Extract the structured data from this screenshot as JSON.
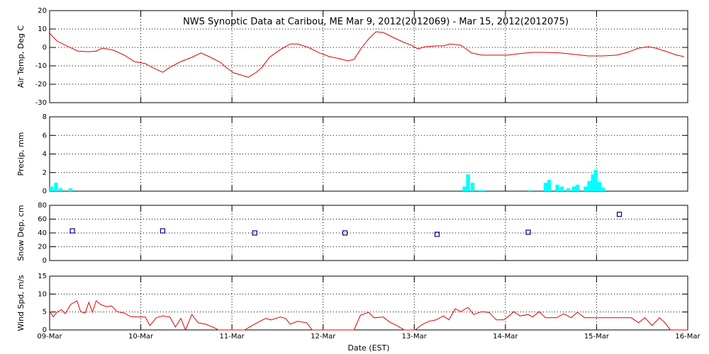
{
  "chart_data": [
    {
      "type": "line",
      "title": "NWS Synoptic Data at Caribou, ME   Mar  9, 2012(2012069) - Mar 15, 2012(2012075)",
      "y_label": "Air Temp, Deg C",
      "color": "#e00000",
      "grid": true,
      "xlim": [
        0,
        7
      ],
      "xticks": [
        0,
        1,
        2,
        3,
        4,
        5,
        6,
        7
      ],
      "ylim": [
        -30,
        20
      ],
      "yticks": [
        -30,
        -20,
        -10,
        0,
        10,
        20
      ],
      "x": [
        0,
        0.08,
        0.19,
        0.31,
        0.43,
        0.51,
        0.58,
        0.7,
        0.82,
        0.93,
        1.05,
        1.13,
        1.24,
        1.32,
        1.44,
        1.56,
        1.66,
        1.75,
        1.87,
        1.94,
        2.02,
        2.1,
        2.18,
        2.26,
        2.33,
        2.41,
        2.53,
        2.64,
        2.72,
        2.84,
        2.96,
        3.07,
        3.19,
        3.27,
        3.34,
        3.42,
        3.5,
        3.58,
        3.66,
        3.77,
        3.89,
        3.97,
        4.04,
        4.12,
        4.24,
        4.32,
        4.39,
        4.51,
        4.63,
        4.74,
        4.9,
        5.02,
        5.13,
        5.29,
        5.44,
        5.6,
        5.76,
        5.91,
        6.07,
        6.22,
        6.34,
        6.46,
        6.57,
        6.65,
        6.77,
        6.88,
        6.96
      ],
      "values": [
        7.7,
        3.5,
        0.8,
        -2,
        -2.3,
        -2,
        -0.4,
        -1.5,
        -4.2,
        -7.7,
        -8.8,
        -11,
        -13.5,
        -10.8,
        -7.7,
        -5.4,
        -3,
        -5,
        -8,
        -11,
        -13.8,
        -15,
        -16.2,
        -13.8,
        -10.8,
        -5.4,
        -1.2,
        1.9,
        1.9,
        0,
        -3,
        -5,
        -6.2,
        -7.3,
        -6.5,
        -0.4,
        4.6,
        8.5,
        8.1,
        5.4,
        2.7,
        1.2,
        -0.8,
        0.4,
        0.8,
        0.8,
        1.9,
        1.2,
        -3,
        -4.2,
        -4.2,
        -4.2,
        -3.5,
        -2.7,
        -2.7,
        -3,
        -3.8,
        -4.6,
        -4.6,
        -4.2,
        -2.7,
        -0.4,
        0.4,
        -0.4,
        -2.3,
        -4.2,
        -5
      ]
    },
    {
      "type": "bar",
      "y_label": "Precip, mm",
      "color": "#00ffff",
      "grid": true,
      "xlim": [
        0,
        7
      ],
      "xticks": [
        0,
        1,
        2,
        3,
        4,
        5,
        6,
        7
      ],
      "ylim": [
        0,
        8
      ],
      "yticks": [
        0,
        2,
        4,
        6,
        8
      ],
      "x": [
        0.02,
        0.07,
        0.12,
        0.23,
        4.55,
        4.59,
        4.64,
        4.72,
        4.76,
        5.27,
        5.44,
        5.48,
        5.57,
        5.62,
        5.69,
        5.75,
        5.79,
        5.88,
        5.92,
        5.96,
        5.99,
        6.03,
        6.07
      ],
      "values": [
        0.5,
        0.9,
        0.3,
        0.3,
        0.5,
        1.8,
        0.9,
        0.1,
        0.1,
        0.1,
        0.9,
        1.2,
        0.7,
        0.5,
        0.3,
        0.5,
        0.7,
        0.5,
        1.1,
        1.8,
        2.3,
        1.0,
        0.4
      ]
    },
    {
      "type": "scatter",
      "y_label": "Snow Dep, cm",
      "color": "#000080",
      "grid": true,
      "xlim": [
        0,
        7
      ],
      "xticks": [
        0,
        1,
        2,
        3,
        4,
        5,
        6,
        7
      ],
      "ylim": [
        0,
        80
      ],
      "yticks": [
        0,
        20,
        40,
        60,
        80
      ],
      "x": [
        0.25,
        1.24,
        2.25,
        3.24,
        4.25,
        5.25,
        6.25
      ],
      "values": [
        43,
        43,
        40,
        40,
        38,
        41,
        67
      ]
    },
    {
      "type": "line",
      "y_label": "Wind Spd, m/s",
      "x_label": "Date (EST)",
      "color": "#e00000",
      "grid": true,
      "xlim": [
        0,
        7
      ],
      "xticks": [
        {
          "value": 0,
          "label": "09-Mar"
        },
        {
          "value": 1,
          "label": "10-Mar"
        },
        {
          "value": 2,
          "label": "11-Mar"
        },
        {
          "value": 3,
          "label": "12-Mar"
        },
        {
          "value": 4,
          "label": "13-Mar"
        },
        {
          "value": 5,
          "label": "14-Mar"
        },
        {
          "value": 6,
          "label": "15-Mar"
        },
        {
          "value": 7,
          "label": "16-Mar"
        }
      ],
      "ylim": [
        0,
        15
      ],
      "yticks": [
        0,
        5,
        10,
        15
      ],
      "x": [
        0,
        0.04,
        0.08,
        0.13,
        0.17,
        0.23,
        0.3,
        0.34,
        0.39,
        0.43,
        0.47,
        0.51,
        0.56,
        0.62,
        0.68,
        0.74,
        0.82,
        0.89,
        0.97,
        1.05,
        1.1,
        1.17,
        1.24,
        1.32,
        1.38,
        1.44,
        1.49,
        1.56,
        1.63,
        1.71,
        1.79,
        1.85,
        1.94,
        2.02,
        2.14,
        2.22,
        2.29,
        2.37,
        2.43,
        2.53,
        2.59,
        2.64,
        2.72,
        2.82,
        2.88,
        2.99,
        3.11,
        3.23,
        3.34,
        3.41,
        3.5,
        3.56,
        3.66,
        3.73,
        3.81,
        3.89,
        4.01,
        4.08,
        4.16,
        4.24,
        4.32,
        4.38,
        4.45,
        4.51,
        4.59,
        4.65,
        4.74,
        4.82,
        4.9,
        4.98,
        5.03,
        5.09,
        5.16,
        5.25,
        5.3,
        5.37,
        5.44,
        5.56,
        5.64,
        5.72,
        5.79,
        5.87,
        6.03,
        6.22,
        6.38,
        6.46,
        6.53,
        6.61,
        6.69,
        6.75,
        6.81,
        6.92,
        7
      ],
      "values": [
        5.1,
        3.7,
        4.9,
        5.7,
        4.5,
        7.1,
        8.1,
        5.1,
        4.7,
        7.7,
        4.9,
        8.1,
        7.1,
        6.5,
        6.7,
        5.1,
        4.7,
        3.7,
        3.6,
        3.6,
        1.2,
        3.4,
        3.9,
        3.6,
        0.8,
        3.2,
        0,
        4.3,
        2,
        1.6,
        0.8,
        0,
        0,
        0,
        0,
        1.2,
        2.2,
        3.2,
        2.8,
        3.6,
        3.2,
        1.6,
        2.4,
        2,
        0,
        0,
        0,
        0,
        0,
        4.1,
        4.9,
        3.4,
        3.6,
        2.2,
        1.2,
        0,
        0,
        1.4,
        2.4,
        2.8,
        3.9,
        2.8,
        5.9,
        5.1,
        6.3,
        4.3,
        5.1,
        4.9,
        2.8,
        2.8,
        3.7,
        5.1,
        3.9,
        4.3,
        3.6,
        5.1,
        3.4,
        3.4,
        4.5,
        3.4,
        4.9,
        3.4,
        3.4,
        3.4,
        3.4,
        2,
        3.4,
        1.2,
        3.4,
        2,
        0,
        0,
        0
      ]
    }
  ]
}
